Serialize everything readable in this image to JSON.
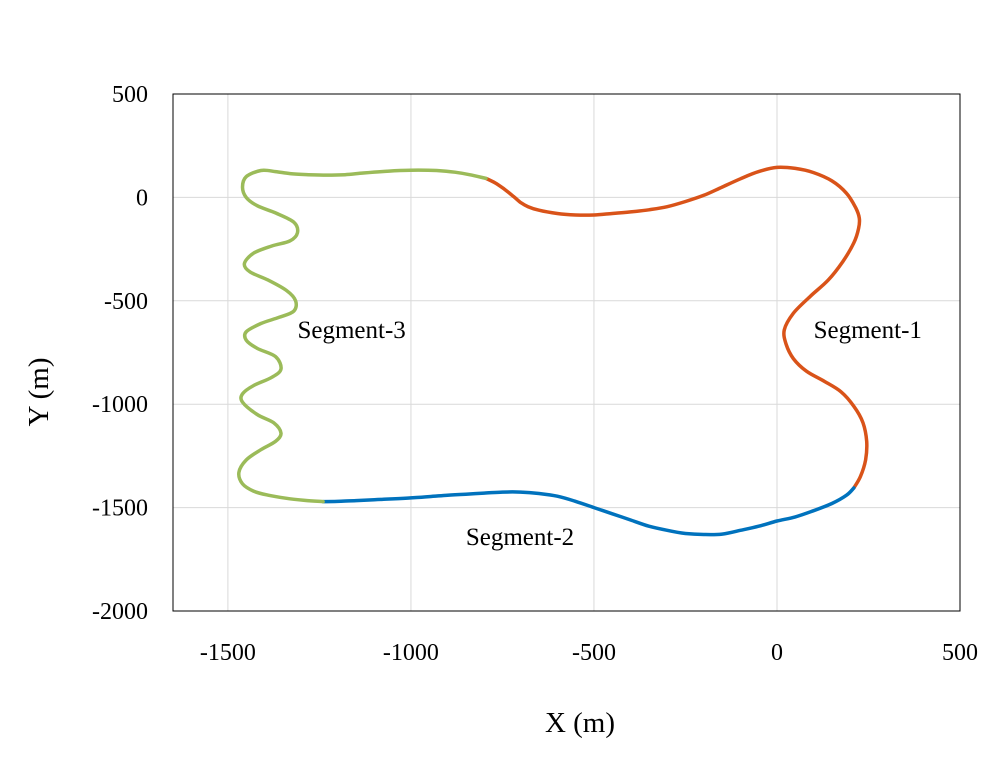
{
  "chart_data": {
    "type": "line",
    "title": "",
    "xlabel": "X (m)",
    "ylabel": "Y (m)",
    "xlim": [
      -1650,
      500
    ],
    "ylim": [
      -2000,
      500
    ],
    "xticks": [
      -1500,
      -1000,
      -500,
      0,
      500
    ],
    "yticks": [
      500,
      0,
      -500,
      -1000,
      -1500,
      -2000
    ],
    "grid": true,
    "legend": "none",
    "series": [
      {
        "name": "Segment-1",
        "color": "#d95319",
        "label_at": [
          100,
          -680
        ],
        "points": [
          [
            -795,
            92
          ],
          [
            -770,
            70
          ],
          [
            -745,
            40
          ],
          [
            -720,
            5
          ],
          [
            -700,
            -25
          ],
          [
            -680,
            -45
          ],
          [
            -650,
            -62
          ],
          [
            -600,
            -78
          ],
          [
            -550,
            -85
          ],
          [
            -500,
            -85
          ],
          [
            -450,
            -78
          ],
          [
            -400,
            -70
          ],
          [
            -350,
            -60
          ],
          [
            -300,
            -45
          ],
          [
            -250,
            -20
          ],
          [
            -200,
            10
          ],
          [
            -150,
            50
          ],
          [
            -100,
            90
          ],
          [
            -50,
            125
          ],
          [
            0,
            145
          ],
          [
            50,
            140
          ],
          [
            100,
            120
          ],
          [
            150,
            80
          ],
          [
            190,
            20
          ],
          [
            215,
            -50
          ],
          [
            225,
            -100
          ],
          [
            223,
            -150
          ],
          [
            210,
            -220
          ],
          [
            180,
            -310
          ],
          [
            140,
            -400
          ],
          [
            90,
            -480
          ],
          [
            45,
            -560
          ],
          [
            20,
            -640
          ],
          [
            25,
            -710
          ],
          [
            45,
            -780
          ],
          [
            80,
            -840
          ],
          [
            130,
            -890
          ],
          [
            175,
            -940
          ],
          [
            210,
            -1010
          ],
          [
            235,
            -1090
          ],
          [
            245,
            -1180
          ],
          [
            242,
            -1270
          ],
          [
            228,
            -1350
          ],
          [
            210,
            -1405
          ]
        ]
      },
      {
        "name": "Segment-2",
        "color": "#0072bd",
        "label_at": [
          -850,
          -1680
        ],
        "points": [
          [
            210,
            -1405
          ],
          [
            190,
            -1440
          ],
          [
            150,
            -1480
          ],
          [
            100,
            -1515
          ],
          [
            50,
            -1545
          ],
          [
            0,
            -1565
          ],
          [
            -50,
            -1590
          ],
          [
            -100,
            -1610
          ],
          [
            -150,
            -1628
          ],
          [
            -200,
            -1630
          ],
          [
            -250,
            -1625
          ],
          [
            -300,
            -1610
          ],
          [
            -350,
            -1590
          ],
          [
            -400,
            -1560
          ],
          [
            -450,
            -1530
          ],
          [
            -500,
            -1500
          ],
          [
            -550,
            -1470
          ],
          [
            -600,
            -1445
          ],
          [
            -650,
            -1432
          ],
          [
            -700,
            -1425
          ],
          [
            -750,
            -1425
          ],
          [
            -800,
            -1430
          ],
          [
            -850,
            -1435
          ],
          [
            -900,
            -1440
          ],
          [
            -950,
            -1447
          ],
          [
            -1000,
            -1453
          ],
          [
            -1050,
            -1458
          ],
          [
            -1100,
            -1462
          ],
          [
            -1150,
            -1466
          ],
          [
            -1200,
            -1470
          ],
          [
            -1240,
            -1471
          ]
        ]
      },
      {
        "name": "Segment-3",
        "color": "#9bbb59",
        "label_at": [
          -1310,
          -680
        ],
        "points": [
          [
            -1240,
            -1471
          ],
          [
            -1290,
            -1465
          ],
          [
            -1340,
            -1455
          ],
          [
            -1390,
            -1440
          ],
          [
            -1430,
            -1420
          ],
          [
            -1460,
            -1385
          ],
          [
            -1470,
            -1330
          ],
          [
            -1450,
            -1270
          ],
          [
            -1410,
            -1220
          ],
          [
            -1370,
            -1180
          ],
          [
            -1355,
            -1140
          ],
          [
            -1375,
            -1090
          ],
          [
            -1420,
            -1050
          ],
          [
            -1460,
            -990
          ],
          [
            -1460,
            -950
          ],
          [
            -1430,
            -910
          ],
          [
            -1380,
            -870
          ],
          [
            -1355,
            -830
          ],
          [
            -1370,
            -770
          ],
          [
            -1420,
            -730
          ],
          [
            -1450,
            -690
          ],
          [
            -1450,
            -650
          ],
          [
            -1410,
            -610
          ],
          [
            -1360,
            -580
          ],
          [
            -1320,
            -550
          ],
          [
            -1315,
            -500
          ],
          [
            -1340,
            -450
          ],
          [
            -1390,
            -400
          ],
          [
            -1440,
            -360
          ],
          [
            -1455,
            -320
          ],
          [
            -1430,
            -270
          ],
          [
            -1380,
            -235
          ],
          [
            -1330,
            -210
          ],
          [
            -1310,
            -170
          ],
          [
            -1320,
            -120
          ],
          [
            -1370,
            -75
          ],
          [
            -1420,
            -40
          ],
          [
            -1450,
            0
          ],
          [
            -1460,
            50
          ],
          [
            -1450,
            100
          ],
          [
            -1410,
            130
          ],
          [
            -1370,
            125
          ],
          [
            -1330,
            115
          ],
          [
            -1280,
            110
          ],
          [
            -1230,
            108
          ],
          [
            -1180,
            110
          ],
          [
            -1130,
            118
          ],
          [
            -1080,
            125
          ],
          [
            -1030,
            130
          ],
          [
            -980,
            132
          ],
          [
            -930,
            130
          ],
          [
            -880,
            122
          ],
          [
            -840,
            110
          ],
          [
            -795,
            92
          ]
        ]
      }
    ]
  }
}
